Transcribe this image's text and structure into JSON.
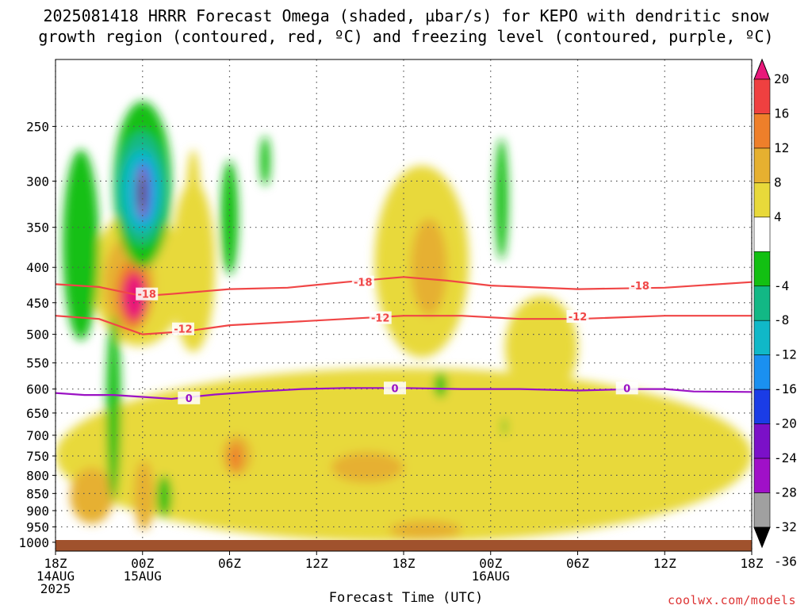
{
  "title": {
    "line1": "2025081418 HRRR Forecast Omega (shaded, µbar/s) for KEPO with dendritic snow",
    "line2": "growth region (contoured, red, ºC) and freezing level (contoured, purple, ºC)"
  },
  "credit": "coolwx.com/models",
  "chart_data": {
    "type": "heatmap",
    "xlabel": "Forecast Time (UTC)",
    "ylabel": "",
    "x_range_hours": [
      0,
      48
    ],
    "y_range_mb": [
      200,
      1030
    ],
    "y_scale": "log-pressure",
    "x_ticks": [
      {
        "h": 0,
        "lines": [
          "18Z",
          "14AUG",
          "2025"
        ]
      },
      {
        "h": 6,
        "lines": [
          "00Z",
          "15AUG"
        ]
      },
      {
        "h": 12,
        "lines": [
          "06Z"
        ]
      },
      {
        "h": 18,
        "lines": [
          "12Z"
        ]
      },
      {
        "h": 24,
        "lines": [
          "18Z"
        ]
      },
      {
        "h": 30,
        "lines": [
          "00Z",
          "16AUG"
        ]
      },
      {
        "h": 36,
        "lines": [
          "06Z"
        ]
      },
      {
        "h": 42,
        "lines": [
          "12Z"
        ]
      },
      {
        "h": 48,
        "lines": [
          "18Z"
        ]
      }
    ],
    "y_ticks": [
      250,
      300,
      350,
      400,
      450,
      500,
      550,
      600,
      650,
      700,
      750,
      800,
      850,
      900,
      950,
      1000
    ],
    "grid": true,
    "colorbar": {
      "labels": [
        "20",
        "16",
        "12",
        "8",
        "4",
        "-4",
        "-8",
        "-12",
        "-16",
        "-20",
        "-24",
        "-28",
        "-32",
        "-36"
      ],
      "colors": [
        "#e8187a",
        "#ef4040",
        "#ee7f2a",
        "#e6b030",
        "#e8d93a",
        "#ffffff",
        "#12c012",
        "#12b885",
        "#10b8c8",
        "#1a90f0",
        "#1a3ce6",
        "#7b10c8",
        "#a010c8",
        "#a0a0a0",
        "#000000"
      ]
    },
    "contours": [
      {
        "label": "-18",
        "color": "#f04646",
        "points": [
          [
            0,
            423
          ],
          [
            3,
            427
          ],
          [
            6,
            440
          ],
          [
            8,
            437
          ],
          [
            12,
            430
          ],
          [
            16,
            428
          ],
          [
            20,
            420
          ],
          [
            24,
            413
          ],
          [
            27,
            418
          ],
          [
            30,
            425
          ],
          [
            36,
            430
          ],
          [
            42,
            428
          ],
          [
            48,
            420
          ]
        ]
      },
      {
        "label": "-12",
        "color": "#f04646",
        "points": [
          [
            0,
            470
          ],
          [
            3,
            475
          ],
          [
            6,
            500
          ],
          [
            9,
            495
          ],
          [
            12,
            485
          ],
          [
            16,
            480
          ],
          [
            20,
            475
          ],
          [
            24,
            470
          ],
          [
            28,
            470
          ],
          [
            32,
            475
          ],
          [
            36,
            475
          ],
          [
            42,
            470
          ],
          [
            48,
            470
          ]
        ]
      },
      {
        "label": "0",
        "color": "#9b12c4",
        "points": [
          [
            0,
            608
          ],
          [
            2,
            612
          ],
          [
            4,
            612
          ],
          [
            6,
            616
          ],
          [
            8,
            620
          ],
          [
            11,
            611
          ],
          [
            14,
            605
          ],
          [
            17,
            600
          ],
          [
            20,
            598
          ],
          [
            24,
            598
          ],
          [
            28,
            600
          ],
          [
            32,
            600
          ],
          [
            36,
            603
          ],
          [
            40,
            600
          ],
          [
            42,
            600
          ],
          [
            44,
            605
          ],
          [
            48,
            606
          ]
        ]
      }
    ],
    "contour_labels": [
      {
        "text": "-18",
        "h": 6.3,
        "p": 437,
        "color": "#f04646"
      },
      {
        "text": "-18",
        "h": 21.2,
        "p": 420,
        "color": "#f04646"
      },
      {
        "text": "-18",
        "h": 40.3,
        "p": 425,
        "color": "#f04646"
      },
      {
        "text": "-12",
        "h": 8.8,
        "p": 491,
        "color": "#f04646"
      },
      {
        "text": "-12",
        "h": 22.4,
        "p": 473,
        "color": "#f04646"
      },
      {
        "text": "-12",
        "h": 36.0,
        "p": 471,
        "color": "#f04646"
      },
      {
        "text": "0",
        "h": 9.2,
        "p": 618,
        "color": "#9b12c4"
      },
      {
        "text": "0",
        "h": 23.4,
        "p": 598,
        "color": "#9b12c4"
      },
      {
        "text": "0",
        "h": 39.4,
        "p": 598,
        "color": "#9b12c4"
      }
    ],
    "shaded_regions": [
      {
        "color": "#12c012",
        "h": [
          0.5,
          3.0
        ],
        "p": [
          270,
          510
        ]
      },
      {
        "color": "#12c012",
        "h": [
          3.5,
          4.5
        ],
        "p": [
          470,
          870
        ]
      },
      {
        "color": "#12c012",
        "h": [
          4.0,
          8.0
        ],
        "p": [
          230,
          400
        ]
      },
      {
        "color": "#12b885",
        "h": [
          4.3,
          7.6
        ],
        "p": [
          255,
          370
        ]
      },
      {
        "color": "#10b8c8",
        "h": [
          4.6,
          7.3
        ],
        "p": [
          270,
          355
        ]
      },
      {
        "color": "#1a90f0",
        "h": [
          5.4,
          6.8
        ],
        "p": [
          280,
          345
        ]
      },
      {
        "color": "#7b10c8",
        "h": [
          5.6,
          6.4
        ],
        "p": [
          285,
          340
        ]
      },
      {
        "color": "#a0a0a0",
        "h": [
          5.7,
          6.2
        ],
        "p": [
          290,
          335
        ]
      },
      {
        "color": "#000000",
        "h": [
          5.8,
          6.1
        ],
        "p": [
          295,
          330
        ]
      },
      {
        "color": "#12c012",
        "h": [
          7.0,
          8.0
        ],
        "p": [
          800,
          920
        ]
      },
      {
        "color": "#12c012",
        "h": [
          11.4,
          12.6
        ],
        "p": [
          280,
          410
        ]
      },
      {
        "color": "#12c012",
        "h": [
          14.1,
          14.8
        ],
        "p": [
          258,
          305
        ]
      },
      {
        "color": "#12c012",
        "h": [
          26.1,
          27.0
        ],
        "p": [
          568,
          618
        ]
      },
      {
        "color": "#12c012",
        "h": [
          30.3,
          31.2
        ],
        "p": [
          260,
          390
        ]
      },
      {
        "color": "#12c012",
        "h": [
          30.8,
          31.1
        ],
        "p": [
          660,
          700
        ]
      }
    ],
    "positive_regions": [
      {
        "color": "#e8d93a",
        "h": [
          2.5,
          9.0
        ],
        "p": [
          330,
          520
        ]
      },
      {
        "color": "#e6b030",
        "h": [
          3.3,
          6.8
        ],
        "p": [
          360,
          500
        ]
      },
      {
        "color": "#ee7f2a",
        "h": [
          4.2,
          6.5
        ],
        "p": [
          390,
          490
        ]
      },
      {
        "color": "#ef4040",
        "h": [
          4.5,
          6.3
        ],
        "p": [
          405,
          480
        ]
      },
      {
        "color": "#e8187a",
        "h": [
          4.7,
          6.2
        ],
        "p": [
          410,
          475
        ]
      },
      {
        "color": "#e8d93a",
        "h": [
          8.0,
          11.0
        ],
        "p": [
          300,
          530
        ]
      },
      {
        "color": "#e8d93a",
        "h": [
          9.0,
          10.0
        ],
        "p": [
          270,
          390
        ]
      },
      {
        "color": "#e8d93a",
        "h": [
          0.0,
          48.0
        ],
        "p": [
          560,
          1000
        ]
      },
      {
        "color": "#e8d93a",
        "h": [
          22.0,
          28.5
        ],
        "p": [
          285,
          540
        ]
      },
      {
        "color": "#e6b030",
        "h": [
          24.5,
          27.0
        ],
        "p": [
          340,
          470
        ]
      },
      {
        "color": "#e8d93a",
        "h": [
          31.0,
          36.0
        ],
        "p": [
          440,
          620
        ]
      },
      {
        "color": "#e6b030",
        "h": [
          1.0,
          4.0
        ],
        "p": [
          780,
          940
        ]
      },
      {
        "color": "#e6b030",
        "h": [
          11.5,
          13.5
        ],
        "p": [
          700,
          800
        ]
      },
      {
        "color": "#ee7f2a",
        "h": [
          12.0,
          12.8
        ],
        "p": [
          720,
          790
        ]
      },
      {
        "color": "#e6b030",
        "h": [
          19.0,
          24.0
        ],
        "p": [
          740,
          820
        ]
      },
      {
        "color": "#e6b030",
        "h": [
          23.0,
          28.0
        ],
        "p": [
          930,
          990
        ]
      },
      {
        "color": "#e6b030",
        "h": [
          5.4,
          6.8
        ],
        "p": [
          760,
          960
        ]
      }
    ]
  }
}
